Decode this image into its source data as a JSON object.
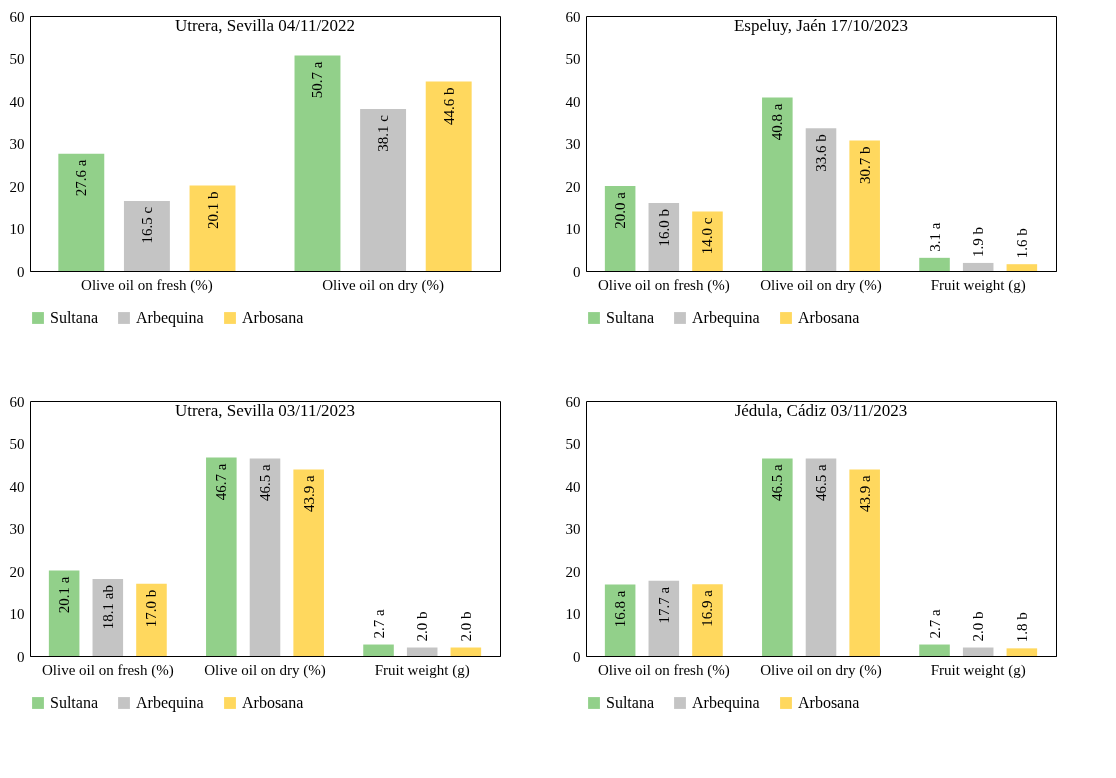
{
  "chart_data": [
    {
      "type": "bar",
      "title": "Utrera, Sevilla 04/11/2022",
      "categories": [
        "Olive oil on fresh (%)",
        "Olive oil on dry (%)"
      ],
      "series": [
        {
          "name": "Sultana",
          "color": "#92d08a",
          "values": [
            27.6,
            50.7
          ],
          "value_labels": [
            "27.6 a",
            "50.7 a"
          ]
        },
        {
          "name": "Arbequina",
          "color": "#c4c4c4",
          "values": [
            16.5,
            38.1
          ],
          "value_labels": [
            "16.5 c",
            "38.1 c"
          ]
        },
        {
          "name": "Arbosana",
          "color": "#ffd85e",
          "values": [
            20.1,
            44.6
          ],
          "value_labels": [
            "20.1 b",
            "44.6 b"
          ]
        }
      ],
      "ylim": [
        0,
        60
      ],
      "yticks": [
        0,
        10,
        20,
        30,
        40,
        50,
        60
      ],
      "legend": "bottom"
    },
    {
      "type": "bar",
      "title": "Espeluy, Jaén 17/10/2023",
      "categories": [
        "Olive oil on fresh (%)",
        "Olive oil on dry (%)",
        "Fruit weight (g)"
      ],
      "series": [
        {
          "name": "Sultana",
          "color": "#92d08a",
          "values": [
            20.0,
            40.8,
            3.1
          ],
          "value_labels": [
            "20.0 a",
            "40.8 a",
            "3.1 a"
          ]
        },
        {
          "name": "Arbequina",
          "color": "#c4c4c4",
          "values": [
            16.0,
            33.6,
            1.9
          ],
          "value_labels": [
            "16.0 b",
            "33.6 b",
            "1.9 b"
          ]
        },
        {
          "name": "Arbosana",
          "color": "#ffd85e",
          "values": [
            14.0,
            30.7,
            1.6
          ],
          "value_labels": [
            "14.0 c",
            "30.7 b",
            "1.6 b"
          ]
        }
      ],
      "ylim": [
        0,
        60
      ],
      "yticks": [
        0,
        10,
        20,
        30,
        40,
        50,
        60
      ],
      "legend": "bottom"
    },
    {
      "type": "bar",
      "title": "Utrera, Sevilla 03/11/2023",
      "categories": [
        "Olive oil on fresh (%)",
        "Olive oil on dry (%)",
        "Fruit weight (g)"
      ],
      "series": [
        {
          "name": "Sultana",
          "color": "#92d08a",
          "values": [
            20.1,
            46.7,
            2.7
          ],
          "value_labels": [
            "20.1 a",
            "46.7 a",
            "2.7 a"
          ]
        },
        {
          "name": "Arbequina",
          "color": "#c4c4c4",
          "values": [
            18.1,
            46.5,
            2.0
          ],
          "value_labels": [
            "18.1 ab",
            "46.5 a",
            "2.0 b"
          ]
        },
        {
          "name": "Arbosana",
          "color": "#ffd85e",
          "values": [
            17.0,
            43.9,
            2.0
          ],
          "value_labels": [
            "17.0 b",
            "43.9 a",
            "2.0 b"
          ]
        }
      ],
      "ylim": [
        0,
        60
      ],
      "yticks": [
        0,
        10,
        20,
        30,
        40,
        50,
        60
      ],
      "legend": "bottom"
    },
    {
      "type": "bar",
      "title": "Jédula, Cádiz 03/11/2023",
      "categories": [
        "Olive oil on fresh (%)",
        "Olive oil on dry (%)",
        "Fruit weight (g)"
      ],
      "series": [
        {
          "name": "Sultana",
          "color": "#92d08a",
          "values": [
            16.8,
            46.5,
            2.7
          ],
          "value_labels": [
            "16.8 a",
            "46.5 a",
            "2.7 a"
          ]
        },
        {
          "name": "Arbequina",
          "color": "#c4c4c4",
          "values": [
            17.7,
            46.5,
            2.0
          ],
          "value_labels": [
            "17.7 a",
            "46.5 a",
            "2.0 b"
          ]
        },
        {
          "name": "Arbosana",
          "color": "#ffd85e",
          "values": [
            16.9,
            43.9,
            1.8
          ],
          "value_labels": [
            "16.9 a",
            "43.9 a",
            "1.8 b"
          ]
        }
      ],
      "ylim": [
        0,
        60
      ],
      "yticks": [
        0,
        10,
        20,
        30,
        40,
        50,
        60
      ],
      "legend": "bottom"
    }
  ]
}
